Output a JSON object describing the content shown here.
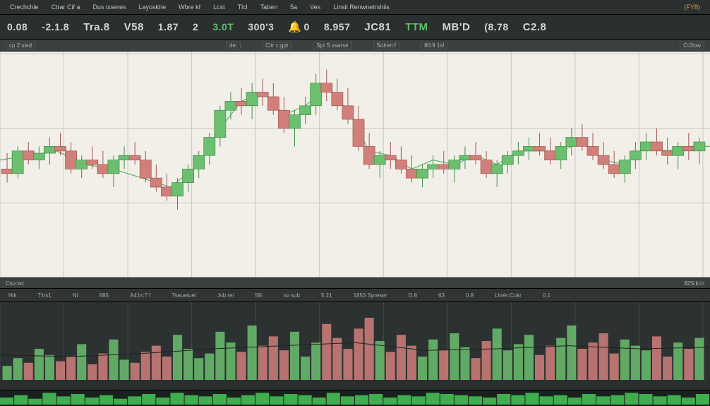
{
  "colors": {
    "bg_dark": "#2a2f2f",
    "bg_darker": "#1a1f1f",
    "bg_chart": "#f2efe8",
    "grid": "#c9c6be",
    "grid_dark": "#444a49",
    "candle_up": "#6bbf6f",
    "candle_up_border": "#3f8f45",
    "candle_down": "#d07f7a",
    "candle_down_border": "#a55550",
    "line_green": "#58b468",
    "text": "#d2d6d4",
    "orange": "#e49a3a"
  },
  "top_menu": [
    "Crechchle",
    "Ctrar Cif a",
    "Dus ixseres",
    "Layoskhe",
    "Wbre kf",
    "Lcst",
    "Tlcl",
    "Taben",
    "5a",
    "Ves",
    "Linsli Renwnetrshiis"
  ],
  "top_menu_right": "(FY8)",
  "tickers": [
    {
      "label": "",
      "val": "0.08"
    },
    {
      "label": "",
      "val": "-2.1.8"
    },
    {
      "label": "Tra.8",
      "val": ""
    },
    {
      "label": "V58",
      "val": ""
    },
    {
      "label": "",
      "val": "1.87"
    },
    {
      "label": "",
      "val": "2"
    },
    {
      "label": "",
      "val": "3.0T",
      "cls": "green"
    },
    {
      "label": "",
      "val": "300'3"
    },
    {
      "label": "",
      "val": "0",
      "icon": "bell"
    },
    {
      "label": "",
      "val": "8.957"
    },
    {
      "label": "JC81",
      "val": ""
    },
    {
      "label": "TTM",
      "val": "",
      "cls": "green"
    },
    {
      "label": "MB'D",
      "val": ""
    },
    {
      "label": "",
      "val": "(8.78"
    },
    {
      "label": "C2.8",
      "val": ""
    }
  ],
  "sub_bar": [
    "cp 2:sied",
    "de:",
    "Citr c:gpt",
    "Spt S xsarse",
    "Solren:f",
    "80:9 1sl"
  ],
  "sub_bar_right": "O:2low",
  "mid_bar_left": "Cso:wс",
  "mid_bar_right": "82S:ki:n",
  "vol_bar": [
    "Hik",
    "T:hs1",
    "NI",
    "885",
    "A41s:7 f",
    "Tsнuetuel",
    "Jvb rei",
    "58i",
    "sv sub",
    "5 21",
    "1853 Spreser",
    "D.8",
    "63",
    "0.8",
    "Lhrér:Cukr",
    "0.1"
  ],
  "date_labels": [
    "",
    "",
    "",
    "",
    "",
    "",
    "",
    "",
    "",
    ""
  ],
  "chart": {
    "type": "candlestick",
    "ylim": [
      0,
      100
    ],
    "xlim": [
      0,
      200
    ],
    "grid_x_step": 18,
    "grid_y_step": 33,
    "candle_width": 3.2,
    "line_width": 1.2,
    "candles": [
      [
        2,
        48,
        55,
        42,
        46,
        "d"
      ],
      [
        5,
        46,
        58,
        44,
        56,
        "u"
      ],
      [
        8,
        56,
        60,
        50,
        52,
        "d"
      ],
      [
        11,
        52,
        58,
        48,
        55,
        "u"
      ],
      [
        14,
        55,
        62,
        50,
        58,
        "u"
      ],
      [
        17,
        58,
        64,
        54,
        56,
        "d"
      ],
      [
        20,
        56,
        60,
        46,
        48,
        "d"
      ],
      [
        23,
        48,
        54,
        44,
        52,
        "u"
      ],
      [
        26,
        52,
        58,
        48,
        50,
        "d"
      ],
      [
        29,
        50,
        56,
        44,
        46,
        "d"
      ],
      [
        32,
        46,
        54,
        40,
        52,
        "u"
      ],
      [
        35,
        52,
        58,
        48,
        54,
        "u"
      ],
      [
        38,
        54,
        60,
        50,
        52,
        "d"
      ],
      [
        41,
        52,
        56,
        42,
        44,
        "d"
      ],
      [
        44,
        44,
        50,
        38,
        40,
        "d"
      ],
      [
        47,
        40,
        46,
        34,
        36,
        "d"
      ],
      [
        50,
        36,
        44,
        30,
        42,
        "u"
      ],
      [
        53,
        42,
        50,
        38,
        48,
        "u"
      ],
      [
        56,
        48,
        56,
        44,
        54,
        "u"
      ],
      [
        59,
        54,
        64,
        50,
        62,
        "u"
      ],
      [
        62,
        62,
        76,
        58,
        74,
        "u"
      ],
      [
        65,
        74,
        82,
        70,
        78,
        "u"
      ],
      [
        68,
        78,
        84,
        72,
        76,
        "d"
      ],
      [
        71,
        76,
        86,
        70,
        82,
        "u"
      ],
      [
        74,
        82,
        88,
        76,
        80,
        "d"
      ],
      [
        77,
        80,
        86,
        72,
        74,
        "d"
      ],
      [
        80,
        74,
        80,
        64,
        66,
        "d"
      ],
      [
        83,
        66,
        74,
        58,
        72,
        "u"
      ],
      [
        86,
        72,
        80,
        68,
        76,
        "u"
      ],
      [
        89,
        76,
        90,
        72,
        86,
        "u"
      ],
      [
        92,
        86,
        92,
        78,
        82,
        "d"
      ],
      [
        95,
        82,
        88,
        74,
        76,
        "d"
      ],
      [
        98,
        76,
        84,
        68,
        70,
        "d"
      ],
      [
        101,
        70,
        76,
        56,
        58,
        "d"
      ],
      [
        104,
        58,
        64,
        48,
        50,
        "d"
      ],
      [
        107,
        50,
        56,
        44,
        54,
        "u"
      ],
      [
        110,
        54,
        60,
        48,
        52,
        "d"
      ],
      [
        113,
        52,
        58,
        46,
        48,
        "d"
      ],
      [
        116,
        48,
        54,
        42,
        44,
        "d"
      ],
      [
        119,
        44,
        50,
        40,
        48,
        "u"
      ],
      [
        122,
        48,
        54,
        44,
        50,
        "u"
      ],
      [
        125,
        50,
        56,
        46,
        48,
        "d"
      ],
      [
        128,
        48,
        54,
        42,
        52,
        "u"
      ],
      [
        131,
        52,
        58,
        48,
        54,
        "u"
      ],
      [
        134,
        54,
        60,
        50,
        52,
        "d"
      ],
      [
        137,
        52,
        56,
        44,
        46,
        "d"
      ],
      [
        140,
        46,
        52,
        40,
        50,
        "u"
      ],
      [
        143,
        50,
        56,
        46,
        54,
        "u"
      ],
      [
        146,
        54,
        60,
        50,
        56,
        "u"
      ],
      [
        149,
        56,
        62,
        52,
        58,
        "u"
      ],
      [
        152,
        58,
        64,
        54,
        56,
        "d"
      ],
      [
        155,
        56,
        62,
        50,
        52,
        "d"
      ],
      [
        158,
        52,
        60,
        48,
        58,
        "u"
      ],
      [
        161,
        58,
        66,
        54,
        62,
        "u"
      ],
      [
        164,
        62,
        68,
        56,
        58,
        "d"
      ],
      [
        167,
        58,
        64,
        52,
        54,
        "d"
      ],
      [
        170,
        54,
        60,
        48,
        50,
        "d"
      ],
      [
        173,
        50,
        56,
        44,
        46,
        "d"
      ],
      [
        176,
        46,
        54,
        42,
        52,
        "u"
      ],
      [
        179,
        52,
        60,
        48,
        56,
        "u"
      ],
      [
        182,
        56,
        64,
        52,
        60,
        "u"
      ],
      [
        185,
        60,
        66,
        54,
        56,
        "d"
      ],
      [
        188,
        56,
        62,
        50,
        54,
        "d"
      ],
      [
        191,
        54,
        60,
        48,
        58,
        "u"
      ],
      [
        194,
        58,
        64,
        52,
        56,
        "d"
      ],
      [
        197,
        56,
        62,
        50,
        60,
        "u"
      ]
    ],
    "line": [
      [
        0,
        52
      ],
      [
        8,
        54
      ],
      [
        16,
        56
      ],
      [
        24,
        50
      ],
      [
        32,
        48
      ],
      [
        40,
        44
      ],
      [
        48,
        40
      ],
      [
        56,
        50
      ],
      [
        62,
        66
      ],
      [
        68,
        78
      ],
      [
        74,
        82
      ],
      [
        80,
        72
      ],
      [
        86,
        76
      ],
      [
        92,
        84
      ],
      [
        98,
        74
      ],
      [
        104,
        56
      ],
      [
        110,
        54
      ],
      [
        116,
        48
      ],
      [
        122,
        52
      ],
      [
        128,
        50
      ],
      [
        134,
        54
      ],
      [
        140,
        50
      ],
      [
        146,
        56
      ],
      [
        152,
        56
      ],
      [
        158,
        56
      ],
      [
        164,
        60
      ],
      [
        170,
        52
      ],
      [
        176,
        50
      ],
      [
        182,
        58
      ],
      [
        188,
        56
      ],
      [
        194,
        58
      ],
      [
        200,
        58
      ]
    ]
  },
  "volume": {
    "type": "bar",
    "ylim": [
      0,
      100
    ],
    "xlim": [
      0,
      200
    ],
    "bar_width": 2.6,
    "bars": [
      [
        2,
        18,
        "u"
      ],
      [
        5,
        28,
        "u"
      ],
      [
        8,
        22,
        "d"
      ],
      [
        11,
        40,
        "u"
      ],
      [
        14,
        32,
        "u"
      ],
      [
        17,
        24,
        "d"
      ],
      [
        20,
        30,
        "d"
      ],
      [
        23,
        46,
        "u"
      ],
      [
        26,
        20,
        "d"
      ],
      [
        29,
        34,
        "d"
      ],
      [
        32,
        52,
        "u"
      ],
      [
        35,
        26,
        "u"
      ],
      [
        38,
        22,
        "d"
      ],
      [
        41,
        36,
        "d"
      ],
      [
        44,
        44,
        "d"
      ],
      [
        47,
        30,
        "d"
      ],
      [
        50,
        58,
        "u"
      ],
      [
        53,
        40,
        "u"
      ],
      [
        56,
        28,
        "u"
      ],
      [
        59,
        34,
        "u"
      ],
      [
        62,
        62,
        "u"
      ],
      [
        65,
        48,
        "u"
      ],
      [
        68,
        36,
        "d"
      ],
      [
        71,
        70,
        "u"
      ],
      [
        74,
        44,
        "d"
      ],
      [
        77,
        56,
        "d"
      ],
      [
        80,
        38,
        "d"
      ],
      [
        83,
        62,
        "u"
      ],
      [
        86,
        30,
        "u"
      ],
      [
        89,
        48,
        "u"
      ],
      [
        92,
        72,
        "d"
      ],
      [
        95,
        54,
        "d"
      ],
      [
        98,
        40,
        "d"
      ],
      [
        101,
        66,
        "d"
      ],
      [
        104,
        80,
        "d"
      ],
      [
        107,
        50,
        "u"
      ],
      [
        110,
        36,
        "d"
      ],
      [
        113,
        58,
        "d"
      ],
      [
        116,
        44,
        "d"
      ],
      [
        119,
        30,
        "u"
      ],
      [
        122,
        52,
        "u"
      ],
      [
        125,
        38,
        "d"
      ],
      [
        128,
        60,
        "u"
      ],
      [
        131,
        42,
        "u"
      ],
      [
        134,
        28,
        "d"
      ],
      [
        137,
        50,
        "d"
      ],
      [
        140,
        66,
        "u"
      ],
      [
        143,
        38,
        "u"
      ],
      [
        146,
        46,
        "u"
      ],
      [
        149,
        58,
        "u"
      ],
      [
        152,
        32,
        "d"
      ],
      [
        155,
        44,
        "d"
      ],
      [
        158,
        54,
        "u"
      ],
      [
        161,
        70,
        "u"
      ],
      [
        164,
        40,
        "d"
      ],
      [
        167,
        48,
        "d"
      ],
      [
        170,
        60,
        "d"
      ],
      [
        173,
        34,
        "d"
      ],
      [
        176,
        52,
        "u"
      ],
      [
        179,
        44,
        "u"
      ],
      [
        182,
        38,
        "u"
      ],
      [
        185,
        56,
        "d"
      ],
      [
        188,
        30,
        "d"
      ],
      [
        191,
        48,
        "u"
      ],
      [
        194,
        40,
        "d"
      ],
      [
        197,
        54,
        "u"
      ]
    ],
    "ma_line": [
      [
        0,
        32
      ],
      [
        20,
        30
      ],
      [
        40,
        34
      ],
      [
        60,
        40
      ],
      [
        80,
        44
      ],
      [
        100,
        48
      ],
      [
        120,
        38
      ],
      [
        140,
        40
      ],
      [
        160,
        44
      ],
      [
        180,
        40
      ],
      [
        200,
        42
      ]
    ]
  },
  "indicator": {
    "color": "#3fae4e",
    "vals": [
      6,
      8,
      5,
      10,
      7,
      9,
      6,
      8,
      5,
      7,
      9,
      6,
      10,
      8,
      7,
      9,
      6,
      8,
      10,
      7,
      9,
      8,
      6,
      10,
      7,
      8,
      9,
      6,
      8,
      7,
      10,
      9,
      8,
      7,
      6,
      9,
      8,
      10,
      7,
      8,
      6,
      9,
      7,
      8,
      10,
      9,
      7,
      8,
      6,
      9
    ]
  }
}
